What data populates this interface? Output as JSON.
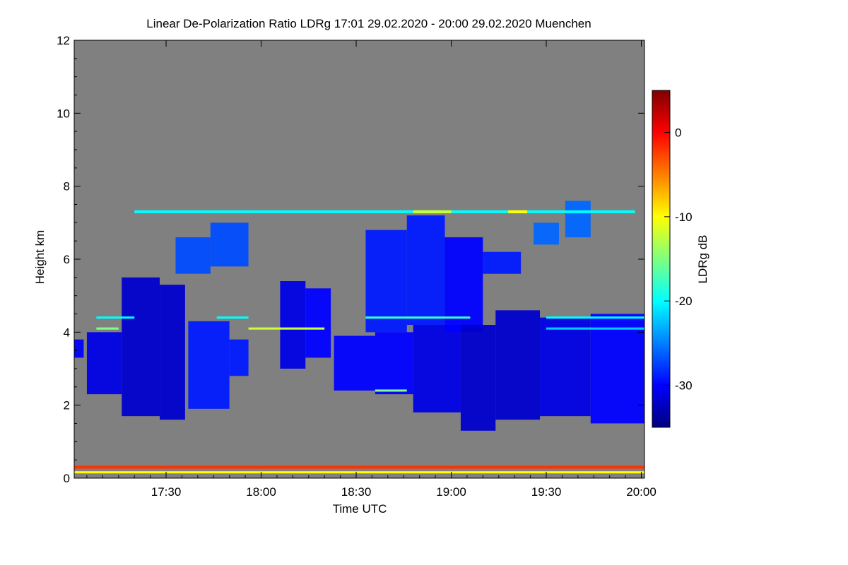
{
  "chart_data": {
    "type": "heatmap",
    "title": "Linear De-Polarization Ratio LDRg   17:01 29.02.2020 - 20:00 29.02.2020 Muenchen",
    "xlabel": "Time UTC",
    "ylabel": "Height km",
    "xlim": [
      "17:01",
      "20:01"
    ],
    "ylim": [
      0,
      12
    ],
    "x_ticks": [
      "17:30",
      "18:00",
      "18:30",
      "19:00",
      "19:30",
      "20:00"
    ],
    "y_ticks": [
      "0",
      "2",
      "4",
      "6",
      "8",
      "10",
      "12"
    ],
    "colorbar": {
      "label": "LDRg dB",
      "range": [
        -35,
        5
      ],
      "ticks": [
        "-30",
        "-20",
        "-10",
        "0"
      ],
      "tick_values": [
        -30,
        -20,
        -10,
        0
      ]
    },
    "background_color": "#808080",
    "regions": [
      {
        "t_start": "17:01",
        "t_end": "17:04",
        "h_min": 3.3,
        "h_max": 3.8,
        "ldr": -30
      },
      {
        "t_start": "17:05",
        "t_end": "17:16",
        "h_min": 2.3,
        "h_max": 4.0,
        "ldr": -31
      },
      {
        "t_start": "17:16",
        "t_end": "17:28",
        "h_min": 1.7,
        "h_max": 5.5,
        "ldr": -32
      },
      {
        "t_start": "17:28",
        "t_end": "17:36",
        "h_min": 1.6,
        "h_max": 5.3,
        "ldr": -32
      },
      {
        "t_start": "17:33",
        "t_end": "17:44",
        "h_min": 5.6,
        "h_max": 6.6,
        "ldr": -27
      },
      {
        "t_start": "17:44",
        "t_end": "17:56",
        "h_min": 5.8,
        "h_max": 7.0,
        "ldr": -27
      },
      {
        "t_start": "17:37",
        "t_end": "17:50",
        "h_min": 1.9,
        "h_max": 4.3,
        "ldr": -29
      },
      {
        "t_start": "17:50",
        "t_end": "17:56",
        "h_min": 2.8,
        "h_max": 3.8,
        "ldr": -29
      },
      {
        "t_start": "18:06",
        "t_end": "18:14",
        "h_min": 3.0,
        "h_max": 5.4,
        "ldr": -31
      },
      {
        "t_start": "18:14",
        "t_end": "18:22",
        "h_min": 3.3,
        "h_max": 5.2,
        "ldr": -30
      },
      {
        "t_start": "18:23",
        "t_end": "18:36",
        "h_min": 2.4,
        "h_max": 3.9,
        "ldr": -30
      },
      {
        "t_start": "18:33",
        "t_end": "18:46",
        "h_min": 4.0,
        "h_max": 6.8,
        "ldr": -29
      },
      {
        "t_start": "18:36",
        "t_end": "18:48",
        "h_min": 2.3,
        "h_max": 4.0,
        "ldr": -30
      },
      {
        "t_start": "18:46",
        "t_end": "18:58",
        "h_min": 4.2,
        "h_max": 7.2,
        "ldr": -29
      },
      {
        "t_start": "18:48",
        "t_end": "19:03",
        "h_min": 1.8,
        "h_max": 4.2,
        "ldr": -31
      },
      {
        "t_start": "18:58",
        "t_end": "19:10",
        "h_min": 4.0,
        "h_max": 6.6,
        "ldr": -30
      },
      {
        "t_start": "19:03",
        "t_end": "19:14",
        "h_min": 1.3,
        "h_max": 4.2,
        "ldr": -32
      },
      {
        "t_start": "19:14",
        "t_end": "19:28",
        "h_min": 1.6,
        "h_max": 4.6,
        "ldr": -32
      },
      {
        "t_start": "19:10",
        "t_end": "19:22",
        "h_min": 5.6,
        "h_max": 6.2,
        "ldr": -29
      },
      {
        "t_start": "19:26",
        "t_end": "19:34",
        "h_min": 6.4,
        "h_max": 7.0,
        "ldr": -26
      },
      {
        "t_start": "19:28",
        "t_end": "19:44",
        "h_min": 1.7,
        "h_max": 4.4,
        "ldr": -31
      },
      {
        "t_start": "19:36",
        "t_end": "19:44",
        "h_min": 6.6,
        "h_max": 7.6,
        "ldr": -26
      },
      {
        "t_start": "19:44",
        "t_end": "20:01",
        "h_min": 1.5,
        "h_max": 4.5,
        "ldr": -30
      }
    ],
    "layers": [
      {
        "t_start": "17:20",
        "t_end": "19:58",
        "height": 7.3,
        "thickness": 0.08,
        "ldr": -20
      },
      {
        "t_start": "18:48",
        "t_end": "19:00",
        "height": 7.3,
        "thickness": 0.08,
        "ldr": -12
      },
      {
        "t_start": "19:18",
        "t_end": "19:24",
        "height": 7.3,
        "thickness": 0.08,
        "ldr": -10
      },
      {
        "t_start": "17:08",
        "t_end": "17:20",
        "height": 4.4,
        "thickness": 0.06,
        "ldr": -20
      },
      {
        "t_start": "17:08",
        "t_end": "17:15",
        "height": 4.1,
        "thickness": 0.06,
        "ldr": -15
      },
      {
        "t_start": "17:46",
        "t_end": "17:56",
        "height": 4.4,
        "thickness": 0.06,
        "ldr": -20
      },
      {
        "t_start": "17:56",
        "t_end": "18:20",
        "height": 4.1,
        "thickness": 0.06,
        "ldr": -12
      },
      {
        "t_start": "18:33",
        "t_end": "19:06",
        "height": 4.4,
        "thickness": 0.06,
        "ldr": -18
      },
      {
        "t_start": "19:30",
        "t_end": "20:01",
        "height": 4.4,
        "thickness": 0.06,
        "ldr": -20
      },
      {
        "t_start": "19:30",
        "t_end": "20:01",
        "height": 4.1,
        "thickness": 0.06,
        "ldr": -22
      },
      {
        "t_start": "18:36",
        "t_end": "18:46",
        "height": 2.4,
        "thickness": 0.06,
        "ldr": -15
      },
      {
        "t_start": "17:01",
        "t_end": "20:01",
        "height": 0.3,
        "thickness": 0.08,
        "ldr": -2
      },
      {
        "t_start": "17:01",
        "t_end": "20:01",
        "height": 0.16,
        "thickness": 0.06,
        "ldr": -10
      }
    ]
  }
}
